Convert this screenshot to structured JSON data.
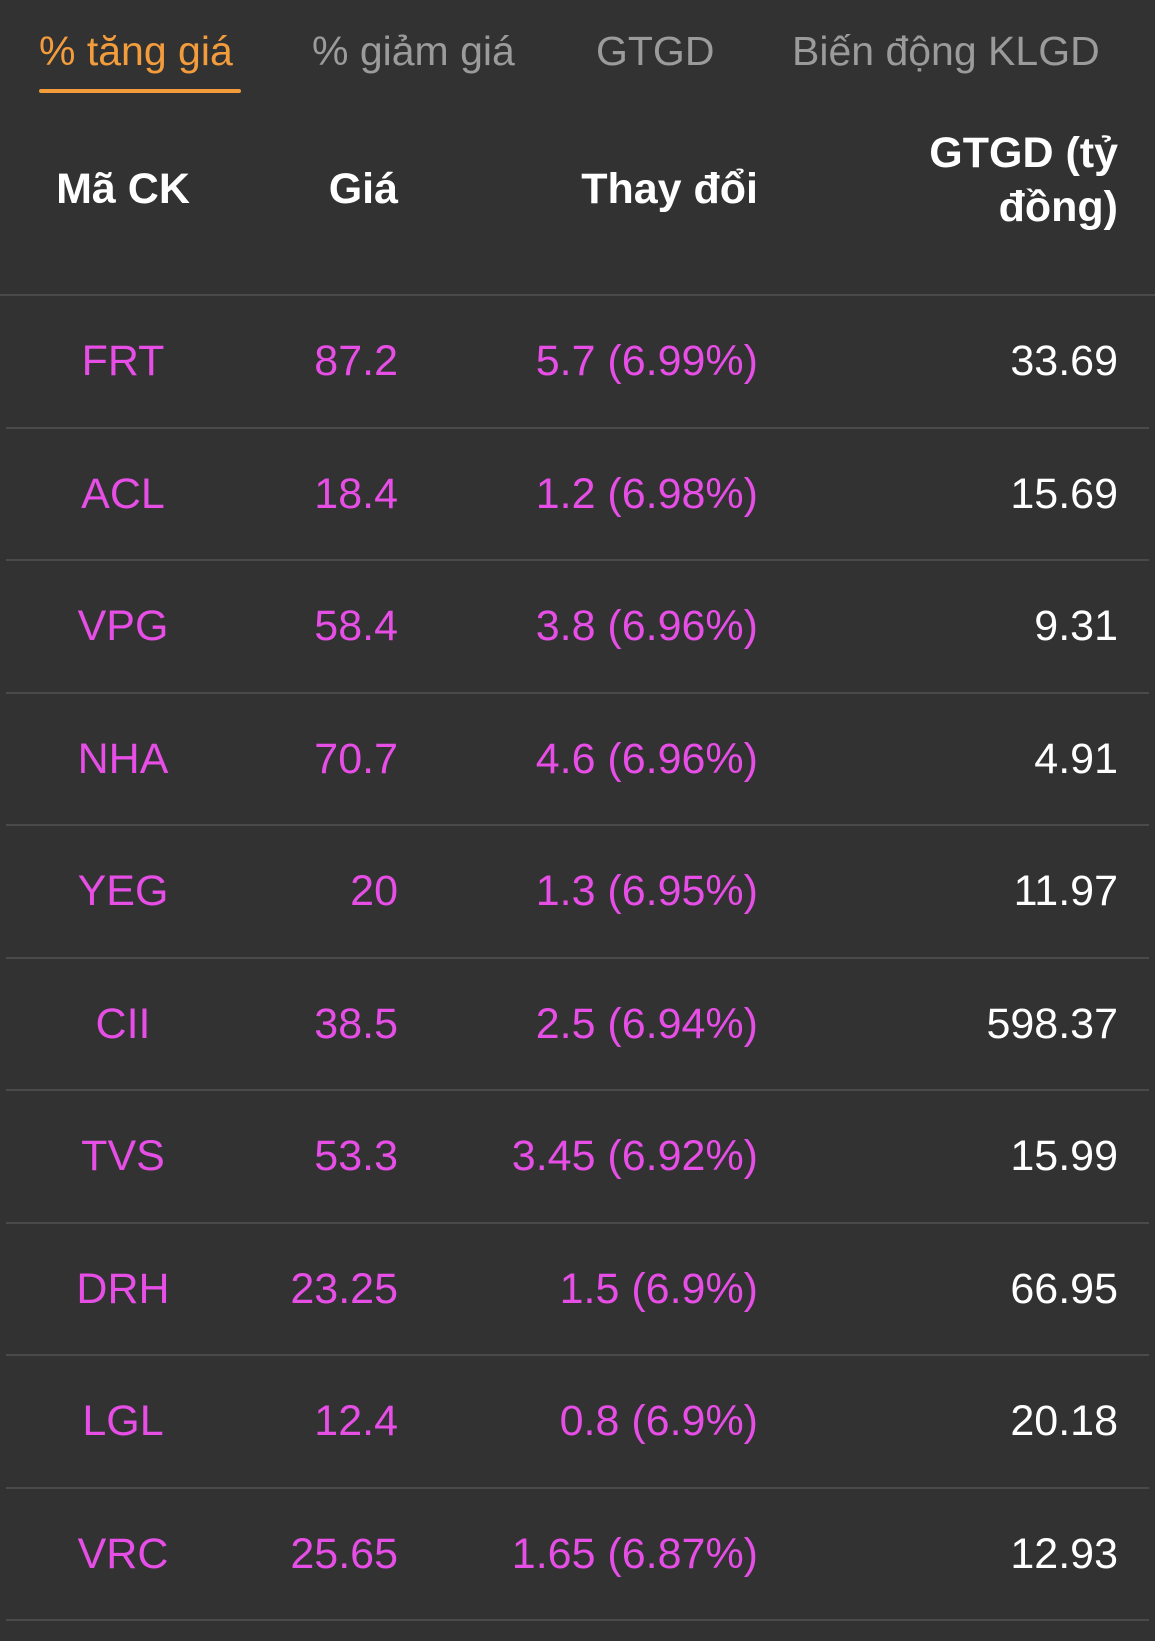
{
  "tabs": [
    {
      "label": "% tăng giá",
      "active": true
    },
    {
      "label": "% giảm giá",
      "active": false
    },
    {
      "label": "GTGD",
      "active": false
    },
    {
      "label": "Biến động KLGD",
      "active": false
    }
  ],
  "table": {
    "headers": {
      "symbol": "Mã CK",
      "price": "Giá",
      "change": "Thay đổi",
      "value_line1": "GTGD (tỷ",
      "value_line2": "đồng)"
    },
    "rows": [
      {
        "symbol": "FRT",
        "price": "87.2",
        "change": "5.7 (6.99%)",
        "value": "33.69"
      },
      {
        "symbol": "ACL",
        "price": "18.4",
        "change": "1.2 (6.98%)",
        "value": "15.69"
      },
      {
        "symbol": "VPG",
        "price": "58.4",
        "change": "3.8 (6.96%)",
        "value": "9.31"
      },
      {
        "symbol": "NHA",
        "price": "70.7",
        "change": "4.6 (6.96%)",
        "value": "4.91"
      },
      {
        "symbol": "YEG",
        "price": "20",
        "change": "1.3 (6.95%)",
        "value": "11.97"
      },
      {
        "symbol": "CII",
        "price": "38.5",
        "change": "2.5 (6.94%)",
        "value": "598.37"
      },
      {
        "symbol": "TVS",
        "price": "53.3",
        "change": "3.45 (6.92%)",
        "value": "15.99"
      },
      {
        "symbol": "DRH",
        "price": "23.25",
        "change": "1.5 (6.9%)",
        "value": "66.95"
      },
      {
        "symbol": "LGL",
        "price": "12.4",
        "change": "0.8 (6.9%)",
        "value": "20.18"
      },
      {
        "symbol": "VRC",
        "price": "25.65",
        "change": "1.65 (6.87%)",
        "value": "12.93"
      }
    ]
  },
  "colors": {
    "background": "#323233",
    "accent": "#f39c3c",
    "up": "#e64ee6",
    "inactive_tab": "#9b9b9b"
  }
}
